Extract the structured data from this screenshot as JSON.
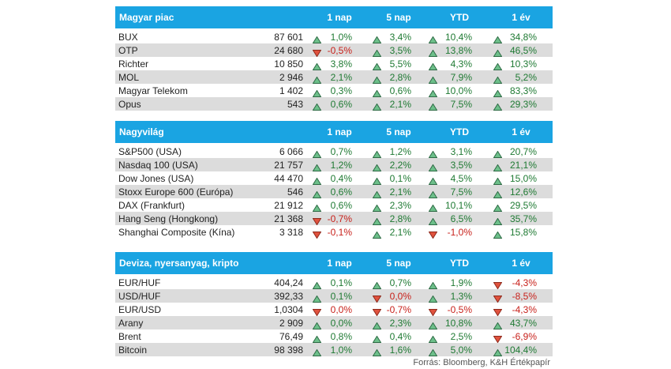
{
  "sections": [
    {
      "title": "Magyar piac",
      "columns": [
        "1 nap",
        "5 nap",
        "YTD",
        "1 év"
      ],
      "rows": [
        {
          "name": "BUX",
          "value": "87 601",
          "changes": [
            {
              "dir": "up",
              "text": "1,0%"
            },
            {
              "dir": "up",
              "text": "3,4%"
            },
            {
              "dir": "up",
              "text": "10,4%"
            },
            {
              "dir": "up",
              "text": "34,8%"
            }
          ]
        },
        {
          "name": "OTP",
          "value": "24 680",
          "changes": [
            {
              "dir": "down",
              "text": "-0,5%"
            },
            {
              "dir": "up",
              "text": "3,5%"
            },
            {
              "dir": "up",
              "text": "13,8%"
            },
            {
              "dir": "up",
              "text": "46,5%"
            }
          ]
        },
        {
          "name": "Richter",
          "value": "10 850",
          "changes": [
            {
              "dir": "up",
              "text": "3,8%"
            },
            {
              "dir": "up",
              "text": "5,5%"
            },
            {
              "dir": "up",
              "text": "4,3%"
            },
            {
              "dir": "up",
              "text": "10,3%"
            }
          ]
        },
        {
          "name": "MOL",
          "value": "2 946",
          "changes": [
            {
              "dir": "up",
              "text": "2,1%"
            },
            {
              "dir": "up",
              "text": "2,8%"
            },
            {
              "dir": "up",
              "text": "7,9%"
            },
            {
              "dir": "up",
              "text": "5,2%"
            }
          ]
        },
        {
          "name": "Magyar Telekom",
          "value": "1 402",
          "changes": [
            {
              "dir": "up",
              "text": "0,3%"
            },
            {
              "dir": "up",
              "text": "0,6%"
            },
            {
              "dir": "up",
              "text": "10,0%"
            },
            {
              "dir": "up",
              "text": "83,3%"
            }
          ]
        },
        {
          "name": "Opus",
          "value": "543",
          "changes": [
            {
              "dir": "up",
              "text": "0,6%"
            },
            {
              "dir": "up",
              "text": "2,1%"
            },
            {
              "dir": "up",
              "text": "7,5%"
            },
            {
              "dir": "up",
              "text": "29,3%"
            }
          ]
        }
      ]
    },
    {
      "title": "Nagyvilág",
      "columns": [
        "1 nap",
        "5 nap",
        "YTD",
        "1 év"
      ],
      "rows": [
        {
          "name": "S&P500 (USA)",
          "value": "6 066",
          "changes": [
            {
              "dir": "up",
              "text": "0,7%"
            },
            {
              "dir": "up",
              "text": "1,2%"
            },
            {
              "dir": "up",
              "text": "3,1%"
            },
            {
              "dir": "up",
              "text": "20,7%"
            }
          ]
        },
        {
          "name": "Nasdaq 100 (USA)",
          "value": "21 757",
          "changes": [
            {
              "dir": "up",
              "text": "1,2%"
            },
            {
              "dir": "up",
              "text": "2,2%"
            },
            {
              "dir": "up",
              "text": "3,5%"
            },
            {
              "dir": "up",
              "text": "21,1%"
            }
          ]
        },
        {
          "name": "Dow Jones (USA)",
          "value": "44 470",
          "changes": [
            {
              "dir": "up",
              "text": "0,4%"
            },
            {
              "dir": "up",
              "text": "0,1%"
            },
            {
              "dir": "up",
              "text": "4,5%"
            },
            {
              "dir": "up",
              "text": "15,0%"
            }
          ]
        },
        {
          "name": "Stoxx Europe 600 (Európa)",
          "value": "546",
          "changes": [
            {
              "dir": "up",
              "text": "0,6%"
            },
            {
              "dir": "up",
              "text": "2,1%"
            },
            {
              "dir": "up",
              "text": "7,5%"
            },
            {
              "dir": "up",
              "text": "12,6%"
            }
          ]
        },
        {
          "name": "DAX (Frankfurt)",
          "value": "21 912",
          "changes": [
            {
              "dir": "up",
              "text": "0,6%"
            },
            {
              "dir": "up",
              "text": "2,3%"
            },
            {
              "dir": "up",
              "text": "10,1%"
            },
            {
              "dir": "up",
              "text": "29,5%"
            }
          ]
        },
        {
          "name": "Hang Seng (Hongkong)",
          "value": "21 368",
          "changes": [
            {
              "dir": "down",
              "text": "-0,7%"
            },
            {
              "dir": "up",
              "text": "2,8%"
            },
            {
              "dir": "up",
              "text": "6,5%"
            },
            {
              "dir": "up",
              "text": "35,7%"
            }
          ]
        },
        {
          "name": "Shanghai Composite (Kína)",
          "value": "3 318",
          "changes": [
            {
              "dir": "down",
              "text": "-0,1%"
            },
            {
              "dir": "up",
              "text": "2,1%"
            },
            {
              "dir": "down",
              "text": "-1,0%"
            },
            {
              "dir": "up",
              "text": "15,8%"
            }
          ]
        }
      ]
    },
    {
      "title": "Deviza, nyersanyag, kripto",
      "columns": [
        "1 nap",
        "5 nap",
        "YTD",
        "1 év"
      ],
      "rows": [
        {
          "name": "EUR/HUF",
          "value": "404,24",
          "changes": [
            {
              "dir": "up",
              "text": "0,1%"
            },
            {
              "dir": "up",
              "text": "0,7%"
            },
            {
              "dir": "up",
              "text": "1,9%"
            },
            {
              "dir": "down",
              "text": "-4,3%"
            }
          ]
        },
        {
          "name": "USD/HUF",
          "value": "392,33",
          "changes": [
            {
              "dir": "up",
              "text": "0,1%"
            },
            {
              "dir": "down",
              "text": "0,0%"
            },
            {
              "dir": "up",
              "text": "1,3%"
            },
            {
              "dir": "down",
              "text": "-8,5%"
            }
          ]
        },
        {
          "name": "EUR/USD",
          "value": "1,0304",
          "changes": [
            {
              "dir": "down",
              "text": "0,0%"
            },
            {
              "dir": "down",
              "text": "-0,7%"
            },
            {
              "dir": "down",
              "text": "-0,5%"
            },
            {
              "dir": "down",
              "text": "-4,3%"
            }
          ]
        },
        {
          "name": "Arany",
          "value": "2 909",
          "changes": [
            {
              "dir": "up",
              "text": "0,0%"
            },
            {
              "dir": "up",
              "text": "2,3%"
            },
            {
              "dir": "up",
              "text": "10,8%"
            },
            {
              "dir": "up",
              "text": "43,7%"
            }
          ]
        },
        {
          "name": "Brent",
          "value": "76,49",
          "changes": [
            {
              "dir": "up",
              "text": "0,8%"
            },
            {
              "dir": "up",
              "text": "0,4%"
            },
            {
              "dir": "up",
              "text": "2,5%"
            },
            {
              "dir": "down",
              "text": "-6,9%"
            }
          ]
        },
        {
          "name": "Bitcoin",
          "value": "98 398",
          "changes": [
            {
              "dir": "up",
              "text": "1,0%"
            },
            {
              "dir": "up",
              "text": "1,6%"
            },
            {
              "dir": "up",
              "text": "5,0%"
            },
            {
              "dir": "up",
              "text": "104,4%"
            }
          ]
        }
      ]
    }
  ],
  "source": "Forrás: Bloomberg, K&H Értékpapír"
}
